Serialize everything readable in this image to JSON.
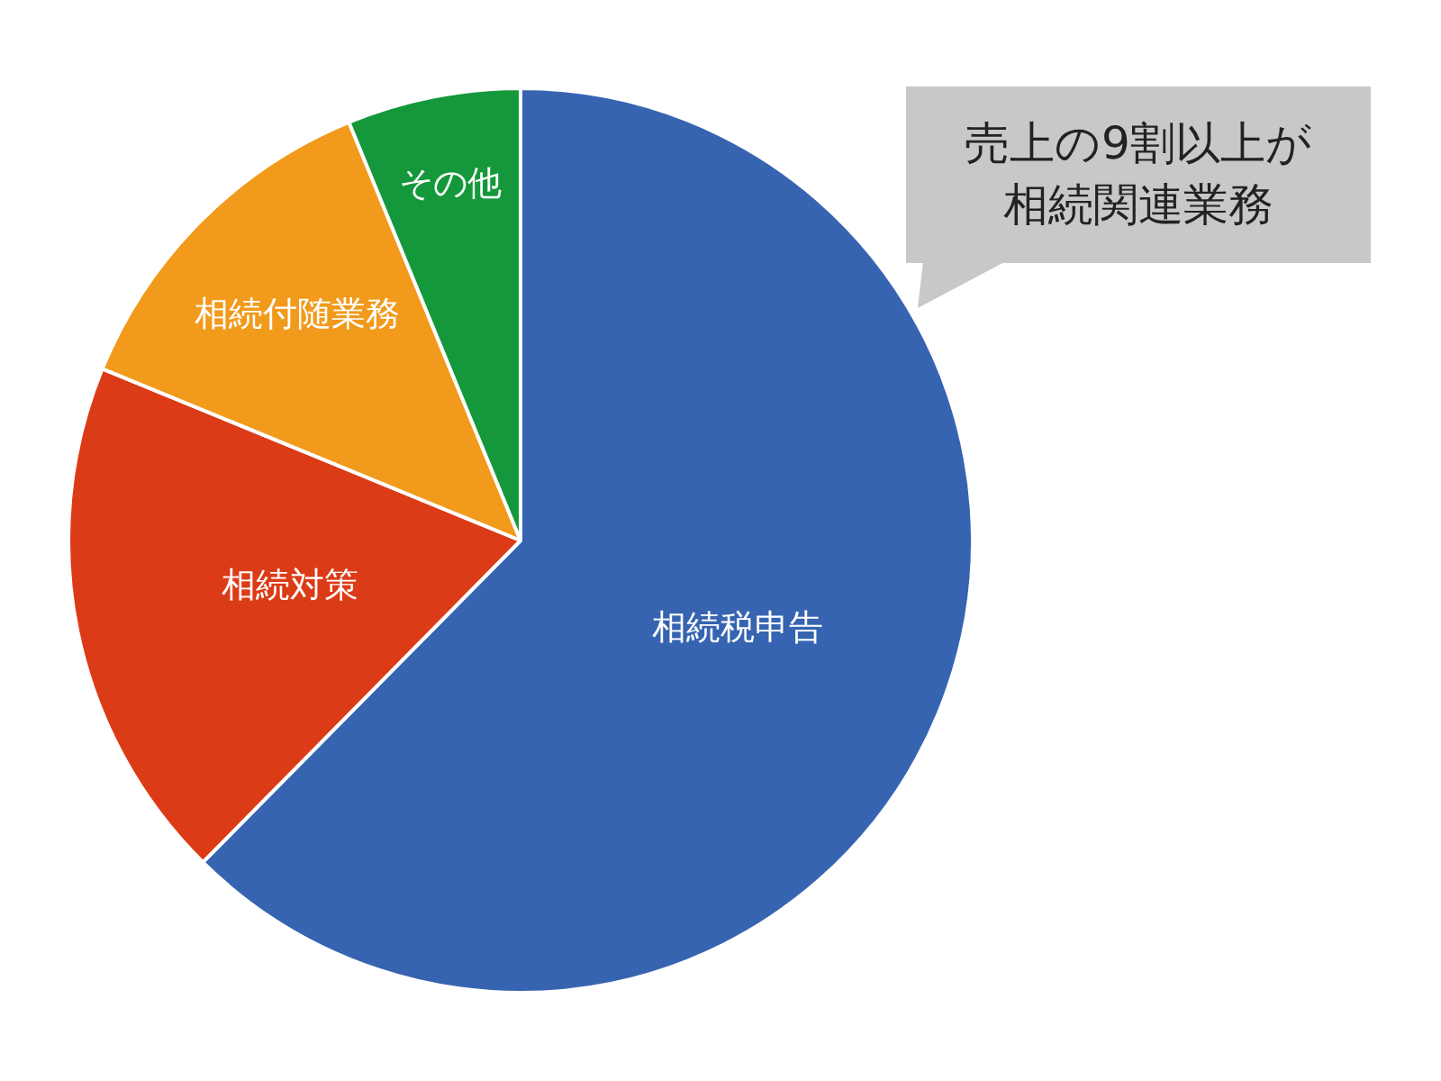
{
  "chart_data": {
    "type": "pie",
    "categories": [
      "相続税申告",
      "相続対策",
      "相続付随業務",
      "その他"
    ],
    "values": [
      62.4,
      18.8,
      12.6,
      6.2
    ],
    "colors": [
      "#3764b1",
      "#dc3b17",
      "#f29a1b",
      "#14983b"
    ],
    "legend": false,
    "annotations": [
      "売上の9割以上が相続関連業務"
    ]
  }
}
